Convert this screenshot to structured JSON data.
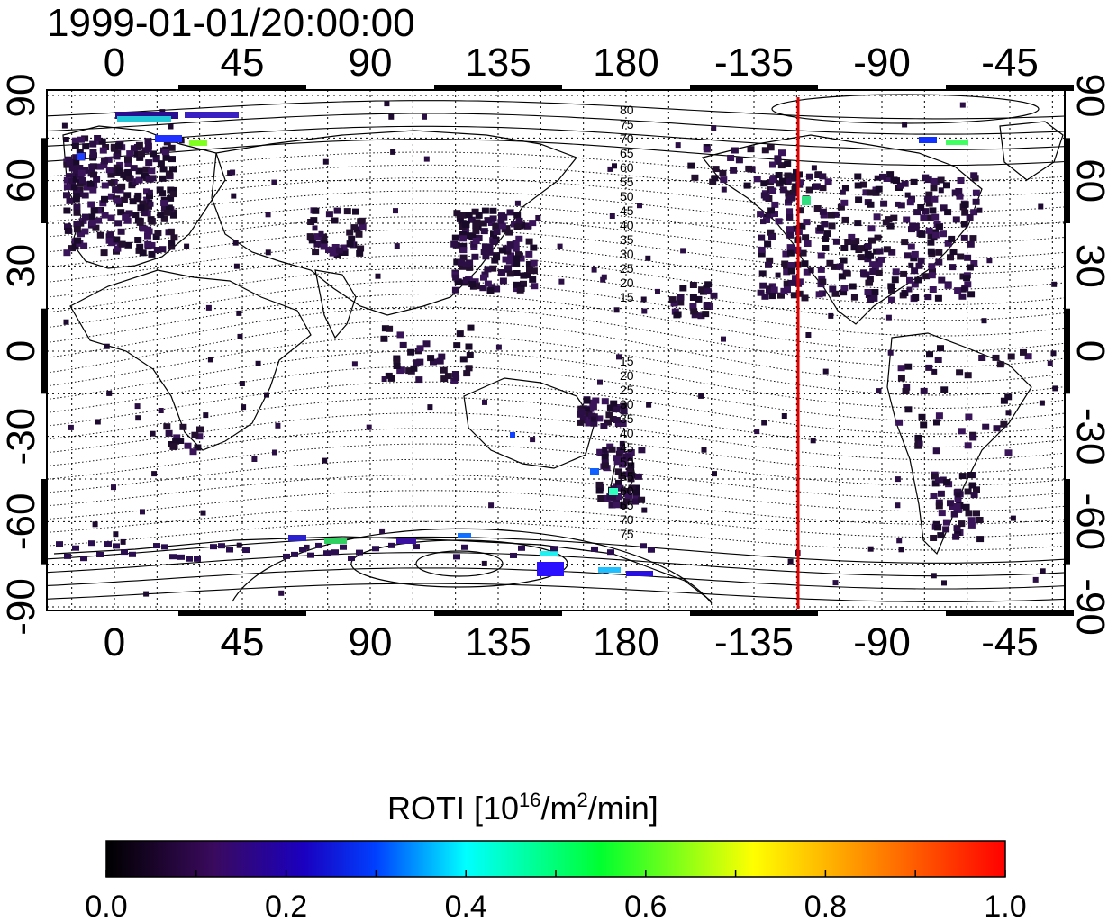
{
  "title": "1999-01-01/20:00:00",
  "lon_ticks": [
    "0",
    "45",
    "90",
    "135",
    "180",
    "-135",
    "-90",
    "-45"
  ],
  "lat_ticks": [
    "90",
    "60",
    "30",
    "0",
    "-30",
    "-60",
    "-90"
  ],
  "maglat_labels_north": [
    "80",
    "75",
    "70",
    "65",
    "60",
    "55",
    "50",
    "45",
    "40",
    "35",
    "30",
    "25",
    "20",
    "15"
  ],
  "maglat_labels_south": [
    "15",
    "20",
    "25",
    "30",
    "35",
    "40",
    "45",
    "50",
    "55",
    "60",
    "65",
    "70",
    "75"
  ],
  "marker_line": {
    "color": "#e00000"
  },
  "colorbar": {
    "label_main": "ROTI  [10",
    "label_exp1": "16",
    "label_mid": "/m",
    "label_exp2": "2",
    "label_end": "/min]",
    "ticks": [
      "0.0",
      "0.2",
      "0.4",
      "0.6",
      "0.8",
      "1.0"
    ],
    "colors": [
      "#000000",
      "#3a0a5e",
      "#0000ff",
      "#00ffff",
      "#00ff00",
      "#ffff00",
      "#ff7f00",
      "#ff0000"
    ]
  }
}
